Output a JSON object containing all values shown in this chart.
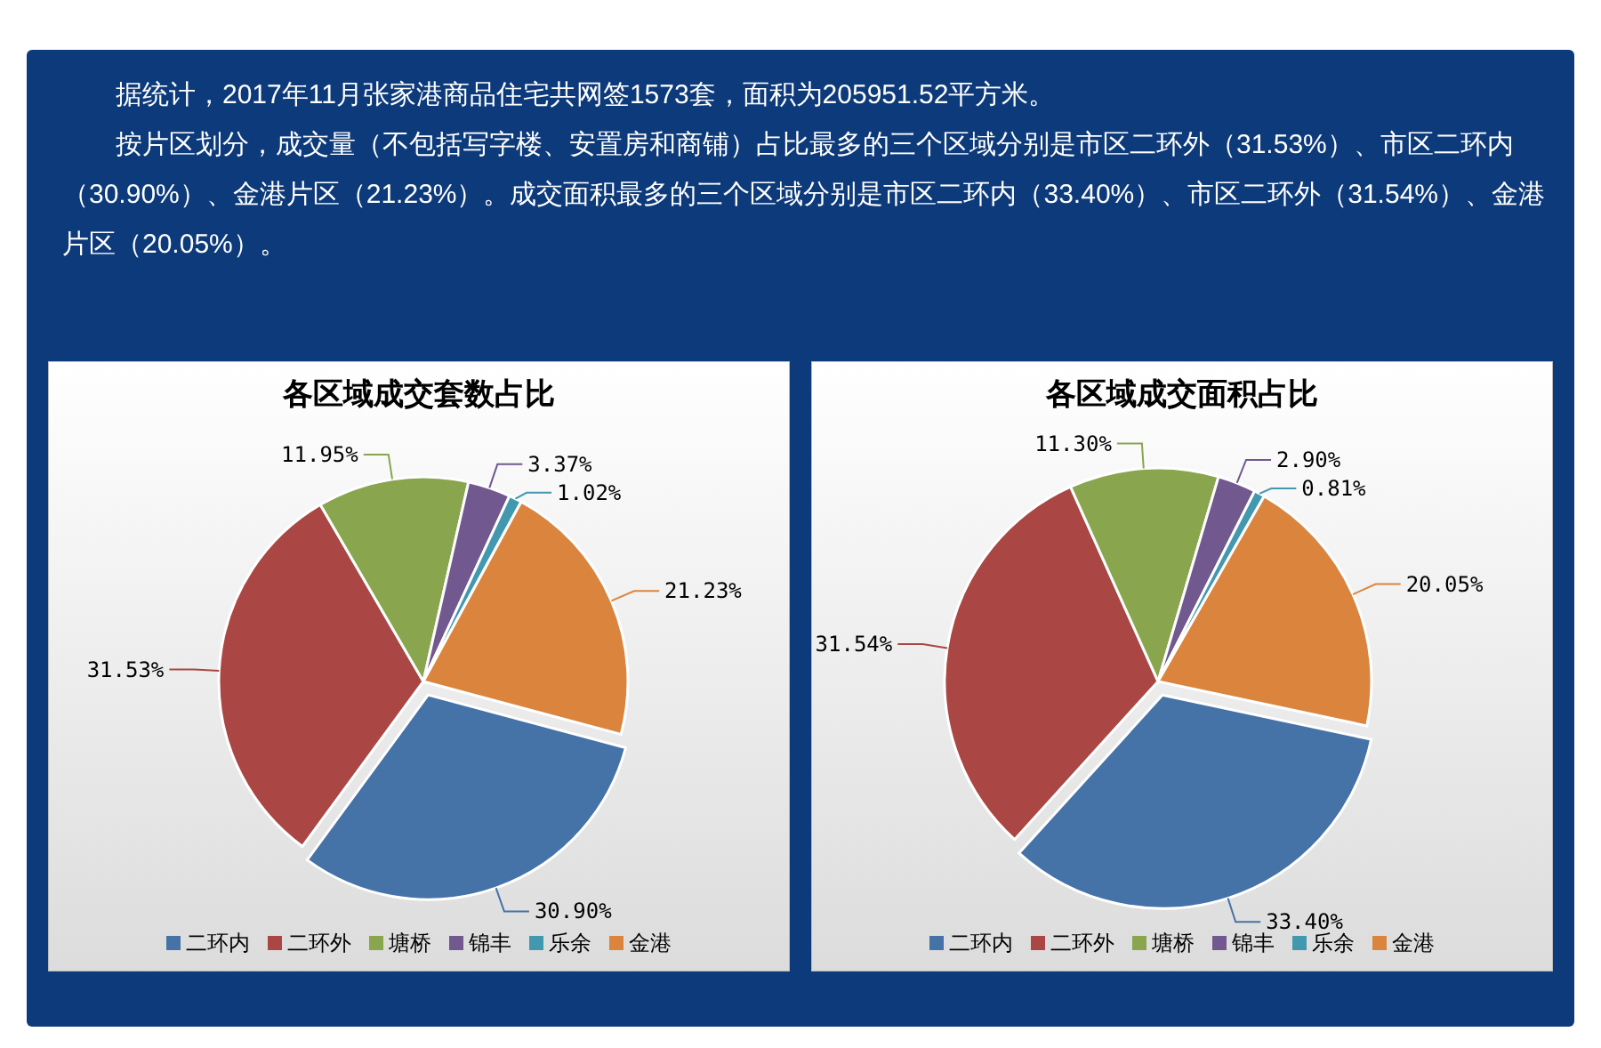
{
  "chart_data": [
    {
      "type": "other",
      "annotations": [
        "据统计，2017年11月张家港商品住宅共网签1573套，面积为205951.52平方米。",
        "按片区划分，成交量（不包括写字楼、安置房和商铺）占比最多的三个区域分别是市区二环外（31.53%）、市区二环内（30.90%）、金港片区（21.23%）。成交面积最多的三个区域分别是市区二环内（33.40%）、市区二环外（31.54%）、金港片区（20.05%）。"
      ]
    },
    {
      "type": "pie",
      "title": "各区域成交套数占比",
      "categories": [
        "二环内",
        "二环外",
        "塘桥",
        "锦丰",
        "乐余",
        "金港"
      ],
      "values": [
        30.9,
        31.53,
        11.95,
        3.37,
        1.02,
        21.23
      ],
      "value_labels": [
        "30.90%",
        "31.53%",
        "11.95%",
        "3.37%",
        "1.02%",
        "21.23%"
      ],
      "colors": [
        "#4572a7",
        "#aa4643",
        "#89a54e",
        "#71588f",
        "#4198af",
        "#db843d"
      ],
      "legend": "bottom"
    },
    {
      "type": "pie",
      "title": "各区域成交面积占比",
      "categories": [
        "二环内",
        "二环外",
        "塘桥",
        "锦丰",
        "乐余",
        "金港"
      ],
      "values": [
        33.4,
        31.54,
        11.3,
        2.9,
        0.81,
        20.05
      ],
      "value_labels": [
        "33.40%",
        "31.54%",
        "11.30%",
        "2.90%",
        "0.81%",
        "20.05%"
      ],
      "colors": [
        "#4572a7",
        "#aa4643",
        "#89a54e",
        "#71588f",
        "#4198af",
        "#db843d"
      ],
      "legend": "bottom"
    }
  ]
}
